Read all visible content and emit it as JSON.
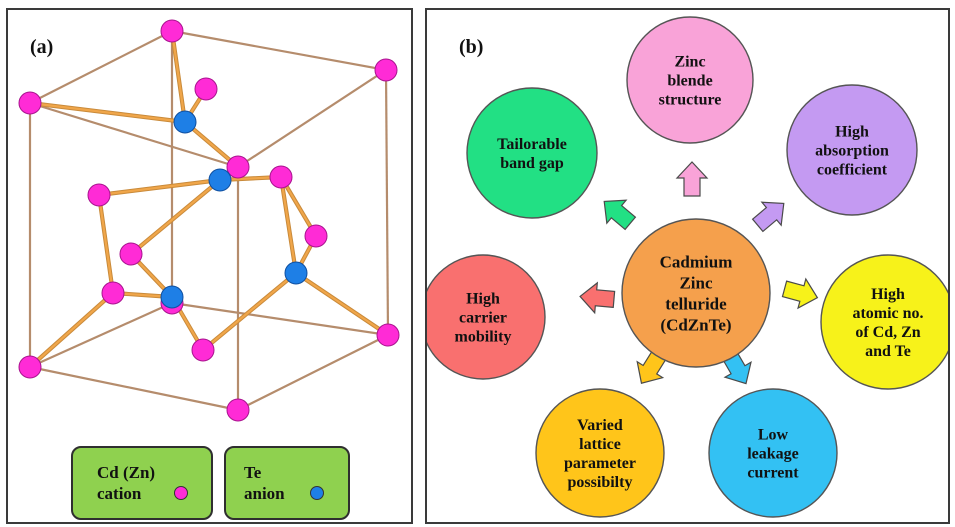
{
  "panel_a": {
    "label": "(a)",
    "legend": [
      {
        "text": "Cd (Zn)\ncation",
        "color": "#ff2bd6"
      },
      {
        "text": "Te\nanion",
        "color": "#1e7fe6"
      }
    ]
  },
  "panel_b": {
    "label": "(b)",
    "center": {
      "lines": [
        "Cadmium",
        "Zinc",
        "telluride",
        "(CdZnTe)"
      ],
      "color": "#f5a04c"
    },
    "nodes": [
      {
        "id": "zinc-blende",
        "lines": [
          "Zinc",
          "blende",
          "structure"
        ],
        "color": "#f9a3d8",
        "arrow": "#f9a3d8"
      },
      {
        "id": "high-absorption",
        "lines": [
          "High",
          "absorption",
          "coefficient"
        ],
        "color": "#c49af2",
        "arrow": "#c49af2"
      },
      {
        "id": "high-atomic",
        "lines": [
          "High",
          "atomic no.",
          "of Cd, Zn",
          "and Te"
        ],
        "color": "#f7f21a",
        "arrow": "#f7f21a"
      },
      {
        "id": "low-leakage",
        "lines": [
          "Low",
          "leakage",
          "current"
        ],
        "color": "#33c1f3",
        "arrow": "#33c1f3"
      },
      {
        "id": "varied-lattice",
        "lines": [
          "Varied",
          "lattice",
          "parameter",
          "possibilty"
        ],
        "color": "#ffc51a",
        "arrow": "#ffc51a"
      },
      {
        "id": "high-carrier",
        "lines": [
          "High",
          "carrier",
          "mobility"
        ],
        "color": "#f9706f",
        "arrow": "#f9706f"
      },
      {
        "id": "tailorable",
        "lines": [
          "Tailorable",
          "band gap"
        ],
        "color": "#22e084",
        "arrow": "#22e084"
      }
    ]
  }
}
